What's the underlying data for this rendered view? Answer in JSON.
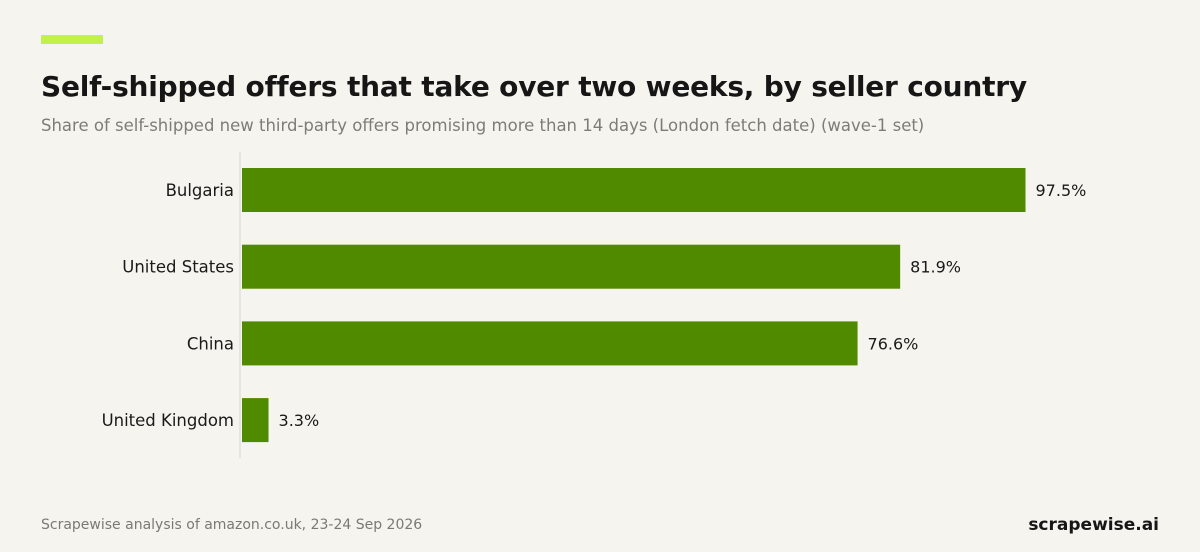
{
  "header": {
    "title": "Self-shipped offers that take over two weeks, by seller country",
    "subtitle": "Share of self-shipped new third-party offers promising more than 14 days (London fetch date) (wave-1 set)"
  },
  "colors": {
    "accent": "#c2f24a",
    "bar": "#4f8a00",
    "axis": "#d6d6cf"
  },
  "chart_data": {
    "type": "bar",
    "orientation": "horizontal",
    "title": "Self-shipped offers that take over two weeks, by seller country",
    "subtitle": "Share of self-shipped new third-party offers promising more than 14 days (London fetch date) (wave-1 set)",
    "categories": [
      "Bulgaria",
      "United States",
      "China",
      "United Kingdom"
    ],
    "values": [
      97.5,
      81.9,
      76.6,
      3.3
    ],
    "value_labels": [
      "97.5%",
      "81.9%",
      "76.6%",
      "3.3%"
    ],
    "xlim": [
      0,
      100
    ],
    "grid": false,
    "legend": "none"
  },
  "footer": {
    "source": "Scrapewise analysis of amazon.co.uk, 23-24 Sep 2026",
    "brand": "scrapewise.ai"
  }
}
